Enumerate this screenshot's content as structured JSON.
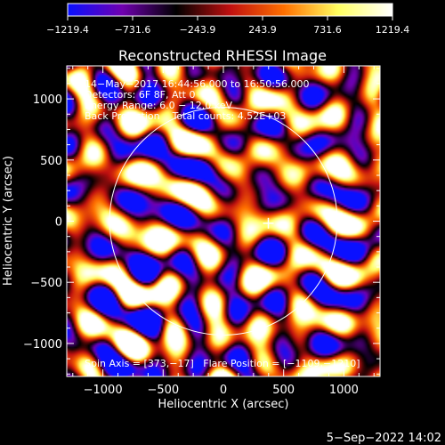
{
  "chart_data": {
    "type": "heatmap",
    "title": "Reconstructed RHESSI Image",
    "xlabel": "Heliocentric X (arcsec)",
    "ylabel": "Heliocentric Y (arcsec)",
    "xlim": [
      -1300,
      1300
    ],
    "ylim": [
      -1270,
      1270
    ],
    "x_ticks": [
      -1000,
      -500,
      0,
      500,
      1000
    ],
    "y_ticks": [
      -1000,
      -500,
      0,
      500,
      1000
    ],
    "x_tick_labels": [
      "−1000",
      "−500",
      "0",
      "500",
      "1000"
    ],
    "y_tick_labels": [
      "−1000",
      "−500",
      "0",
      "500",
      "1000"
    ],
    "colorbar": {
      "range": [
        -1219.4,
        1219.4
      ],
      "tick_labels": [
        "−1219.4",
        "−731.6",
        "−243.9",
        "243.9",
        "731.6",
        "1219.4"
      ],
      "colors": [
        "#0a10ff",
        "#7000b0",
        "#000000",
        "#c01010",
        "#ff7000",
        "#ffff60",
        "#ffffff"
      ]
    },
    "annotations": {
      "line1": "14−May−2017 16:44:56.000 to 16:50:56.000",
      "line2": "Detectors: 6F 8F, Att 0",
      "line3": "Energy Range: 6.0 − 12.0 keV",
      "line4": "Back Projection    Total counts: 4.52E+03",
      "bottom": "Spin Axis = [373,−17]   Flare Position = [−1109,−1210]"
    },
    "solar_disk": {
      "center": [
        0,
        0
      ],
      "radius_arcsec": 945
    },
    "cross_marker": [
      373,
      -17
    ],
    "timestamp": "5−Sep−2022 14:02"
  }
}
